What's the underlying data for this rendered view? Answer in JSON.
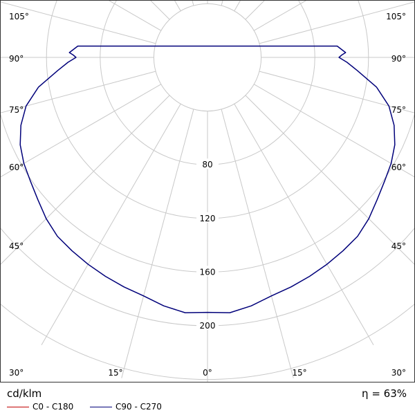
{
  "unit_label": "cd/klm",
  "efficiency_label": "η = 63%",
  "legend": [
    {
      "label": "C0 - C180",
      "color": "#c00000"
    },
    {
      "label": "C90 - C270",
      "color": "#00007a"
    }
  ],
  "chart_data": {
    "type": "polar_luminous_intensity",
    "radial_ticks": [
      {
        "value": 80,
        "label": "80"
      },
      {
        "value": 120,
        "label": "120"
      },
      {
        "value": 160,
        "label": "160"
      },
      {
        "value": 200,
        "label": "200"
      }
    ],
    "radial_grid_values": [
      40,
      80,
      120,
      160,
      200,
      240
    ],
    "angle_ticks": [
      {
        "value": 0,
        "label": "0°"
      },
      {
        "value": 15,
        "label": "15°"
      },
      {
        "value": 30,
        "label": "30°"
      },
      {
        "value": 45,
        "label": "45°"
      },
      {
        "value": 60,
        "label": "60°"
      },
      {
        "value": 75,
        "label": "75°"
      },
      {
        "value": 90,
        "label": "90°"
      },
      {
        "value": 105,
        "label": "105°"
      }
    ],
    "series": [
      {
        "name": "C90 - C270",
        "color": "#00007a",
        "angles": [
          0,
          5,
          10,
          15,
          20,
          25,
          30,
          35,
          40,
          45,
          50,
          55,
          60,
          65,
          70,
          75,
          80,
          85,
          88,
          90,
          91,
          92,
          95
        ],
        "values": [
          190,
          191,
          188,
          184,
          182,
          180,
          178,
          176,
          174,
          170,
          165,
          161,
          158,
          154,
          148,
          140,
          128,
          112,
          104,
          98,
          100,
          103,
          97
        ]
      }
    ]
  }
}
